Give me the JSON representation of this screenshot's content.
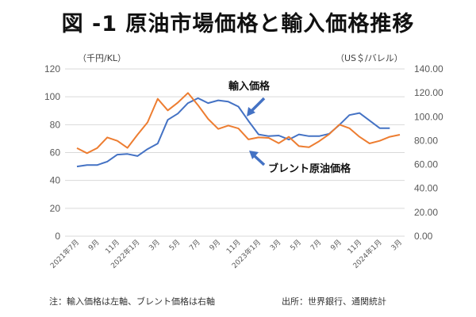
{
  "chart_data": {
    "type": "line",
    "title": "図 -1 原油市場価格と輸入価格推移",
    "x": [
      "2021年7月",
      "8月",
      "9月",
      "10月",
      "11月",
      "12月",
      "2022年1月",
      "2月",
      "3月",
      "4月",
      "5月",
      "6月",
      "7月",
      "8月",
      "9月",
      "10月",
      "11月",
      "12月",
      "2023年1月",
      "2月",
      "3月",
      "4月",
      "5月",
      "6月",
      "7月",
      "8月",
      "9月",
      "10月",
      "11月",
      "12月",
      "2024年1月",
      "2月",
      "3月"
    ],
    "x_tick_labels": [
      "2021年7月",
      "9月",
      "11月",
      "2022年1月",
      "3月",
      "5月",
      "7月",
      "9月",
      "11月",
      "2023年1月",
      "3月",
      "5月",
      "7月",
      "9月",
      "11月",
      "2024年1月",
      "3月"
    ],
    "series": [
      {
        "name": "輸入価格",
        "axis": "left",
        "color": "#4472C4",
        "values": [
          50,
          51,
          51,
          53.5,
          58.5,
          59,
          57.5,
          62.5,
          66.5,
          83.5,
          88,
          95.5,
          99,
          95.5,
          97.5,
          96.5,
          93,
          82.7,
          73,
          71.8,
          72.2,
          69.3,
          73,
          71.8,
          71.8,
          73.5,
          79.8,
          86.9,
          88.4,
          83,
          77.5,
          77.5,
          null
        ]
      },
      {
        "name": "ブレント原油価格",
        "axis": "right",
        "color": "#ED7D31",
        "values": [
          73.7,
          69.5,
          73.7,
          82.7,
          79.8,
          73.9,
          84.9,
          95.3,
          115,
          105.3,
          111.9,
          119.9,
          109.7,
          98.2,
          89.8,
          92.6,
          90.2,
          81,
          82.7,
          82.3,
          77.8,
          83.2,
          75.4,
          74.5,
          79.5,
          85.4,
          93.4,
          90.4,
          83.2,
          77.6,
          79.8,
          83.2,
          84.9
        ]
      }
    ],
    "left_axis": {
      "label": "（千円/KL）",
      "ylim": [
        0,
        120
      ],
      "ticks": [
        "0",
        "20",
        "40",
        "60",
        "80",
        "100",
        "120"
      ]
    },
    "right_axis": {
      "label": "（US＄/バレル）",
      "ylim": [
        0,
        140
      ],
      "ticks": [
        "0.00",
        "20.00",
        "40.00",
        "60.00",
        "80.00",
        "100.00",
        "120.00",
        "140.00"
      ]
    },
    "grid": true,
    "annotations": [
      {
        "text": "輸入価格",
        "target": "輸入価格"
      },
      {
        "text": "ブレント原油価格",
        "target": "ブレント原油価格"
      }
    ],
    "annotation_arrow_color": "#4472C4"
  },
  "footer": {
    "note": "注：輸入価格は左軸、ブレント価格は右軸",
    "source": "出所：世界銀行、通関統計"
  }
}
